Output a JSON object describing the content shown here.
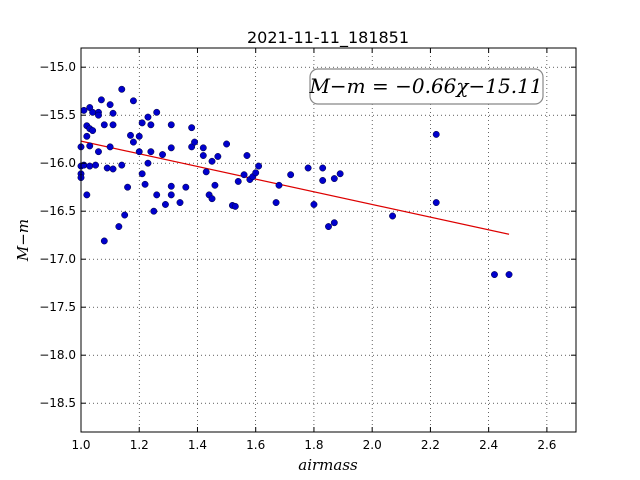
{
  "chart_data": {
    "type": "scatter",
    "title": "2021-11-11_181851",
    "xlabel": "airmass",
    "ylabel": "M−m",
    "xlim": [
      1.0,
      2.7
    ],
    "ylim": [
      -18.8,
      -14.8
    ],
    "y_inverted": true,
    "grid": true,
    "xticks": [
      "1.0",
      "1.2",
      "1.4",
      "1.6",
      "1.8",
      "2.0",
      "2.2",
      "2.4",
      "2.6"
    ],
    "yticks": [
      "−15.0",
      "−15.5",
      "−16.0",
      "−16.5",
      "−17.0",
      "−17.5",
      "−18.0",
      "−18.5"
    ],
    "fit_label": "M−m = −0.66χ−15.11",
    "fit": {
      "slope": -0.66,
      "intercept": -15.11,
      "x_range": [
        1.0,
        2.47
      ]
    },
    "colors": {
      "points": "#0000cc",
      "fit_line": "#dd0000"
    },
    "points": [
      [
        1.0,
        -15.83
      ],
      [
        1.0,
        -16.03
      ],
      [
        1.0,
        -16.11
      ],
      [
        1.0,
        -16.15
      ],
      [
        1.01,
        -15.45
      ],
      [
        1.01,
        -16.02
      ],
      [
        1.02,
        -15.61
      ],
      [
        1.02,
        -15.72
      ],
      [
        1.02,
        -16.33
      ],
      [
        1.03,
        -15.42
      ],
      [
        1.03,
        -15.64
      ],
      [
        1.03,
        -15.82
      ],
      [
        1.03,
        -16.03
      ],
      [
        1.04,
        -15.47
      ],
      [
        1.04,
        -15.66
      ],
      [
        1.05,
        -16.02
      ],
      [
        1.06,
        -15.47
      ],
      [
        1.06,
        -15.5
      ],
      [
        1.06,
        -15.88
      ],
      [
        1.07,
        -15.34
      ],
      [
        1.08,
        -15.6
      ],
      [
        1.08,
        -16.81
      ],
      [
        1.09,
        -16.05
      ],
      [
        1.1,
        -15.39
      ],
      [
        1.1,
        -15.83
      ],
      [
        1.11,
        -15.6
      ],
      [
        1.11,
        -16.06
      ],
      [
        1.11,
        -15.48
      ],
      [
        1.13,
        -16.66
      ],
      [
        1.14,
        -15.23
      ],
      [
        1.14,
        -16.02
      ],
      [
        1.15,
        -16.54
      ],
      [
        1.16,
        -16.25
      ],
      [
        1.17,
        -15.71
      ],
      [
        1.18,
        -15.35
      ],
      [
        1.18,
        -15.78
      ],
      [
        1.2,
        -15.72
      ],
      [
        1.2,
        -15.88
      ],
      [
        1.21,
        -16.11
      ],
      [
        1.21,
        -15.58
      ],
      [
        1.22,
        -16.22
      ],
      [
        1.23,
        -16.0
      ],
      [
        1.23,
        -15.52
      ],
      [
        1.24,
        -15.6
      ],
      [
        1.24,
        -15.88
      ],
      [
        1.25,
        -16.5
      ],
      [
        1.26,
        -16.33
      ],
      [
        1.26,
        -15.47
      ],
      [
        1.28,
        -15.91
      ],
      [
        1.29,
        -16.43
      ],
      [
        1.31,
        -16.24
      ],
      [
        1.31,
        -16.33
      ],
      [
        1.31,
        -15.6
      ],
      [
        1.31,
        -15.84
      ],
      [
        1.34,
        -16.41
      ],
      [
        1.36,
        -16.25
      ],
      [
        1.38,
        -15.83
      ],
      [
        1.38,
        -15.63
      ],
      [
        1.39,
        -15.78
      ],
      [
        1.42,
        -15.84
      ],
      [
        1.42,
        -15.92
      ],
      [
        1.43,
        -16.09
      ],
      [
        1.44,
        -16.33
      ],
      [
        1.45,
        -15.98
      ],
      [
        1.45,
        -16.37
      ],
      [
        1.46,
        -16.23
      ],
      [
        1.47,
        -15.93
      ],
      [
        1.5,
        -15.8
      ],
      [
        1.52,
        -16.44
      ],
      [
        1.53,
        -16.45
      ],
      [
        1.54,
        -16.19
      ],
      [
        1.56,
        -16.12
      ],
      [
        1.57,
        -15.92
      ],
      [
        1.58,
        -16.17
      ],
      [
        1.59,
        -16.14
      ],
      [
        1.6,
        -16.1
      ],
      [
        1.61,
        -16.03
      ],
      [
        1.67,
        -16.41
      ],
      [
        1.68,
        -16.23
      ],
      [
        1.72,
        -16.12
      ],
      [
        1.78,
        -16.05
      ],
      [
        1.8,
        -16.43
      ],
      [
        1.83,
        -16.05
      ],
      [
        1.83,
        -16.18
      ],
      [
        1.85,
        -16.66
      ],
      [
        1.87,
        -16.62
      ],
      [
        1.87,
        -16.16
      ],
      [
        1.89,
        -16.11
      ],
      [
        2.07,
        -16.55
      ],
      [
        2.22,
        -16.41
      ],
      [
        2.22,
        -15.7
      ],
      [
        2.42,
        -17.16
      ],
      [
        2.47,
        -17.16
      ]
    ]
  }
}
